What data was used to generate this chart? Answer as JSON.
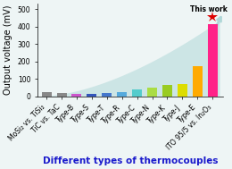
{
  "categories": [
    "MoSi₂ vs. TiSi₂",
    "TiC vs. TaC",
    "Type-B",
    "Type-S",
    "Type-T",
    "Type-R",
    "Type-C",
    "Type-N",
    "Type-K",
    "Type-J",
    "Type-E",
    "ITO 95/5 vs. In₂O₃"
  ],
  "values": [
    22,
    18,
    13,
    15,
    20,
    22,
    40,
    52,
    65,
    72,
    175,
    415
  ],
  "bar_colors": [
    "#888888",
    "#888888",
    "#cc55cc",
    "#3355bb",
    "#4477cc",
    "#55aadd",
    "#55cccc",
    "#aadd44",
    "#99cc22",
    "#dddd00",
    "#ffaa00",
    "#ff2288"
  ],
  "star_color": "#dd0000",
  "annotation": "This work",
  "ylabel": "Output voltage (mV)",
  "xlabel": "Different types of thermocouples",
  "ylim": [
    0,
    530
  ],
  "yticks": [
    0,
    100,
    200,
    300,
    400,
    500
  ],
  "bg_color": "#eef5f5",
  "sweep_color": "#b0d8d8",
  "sweep_alpha": 0.55,
  "xlabel_color": "#1a1acc",
  "ylabel_color": "#000000",
  "tick_fontsize": 5.5,
  "label_fontsize": 7,
  "bar_width": 0.65
}
